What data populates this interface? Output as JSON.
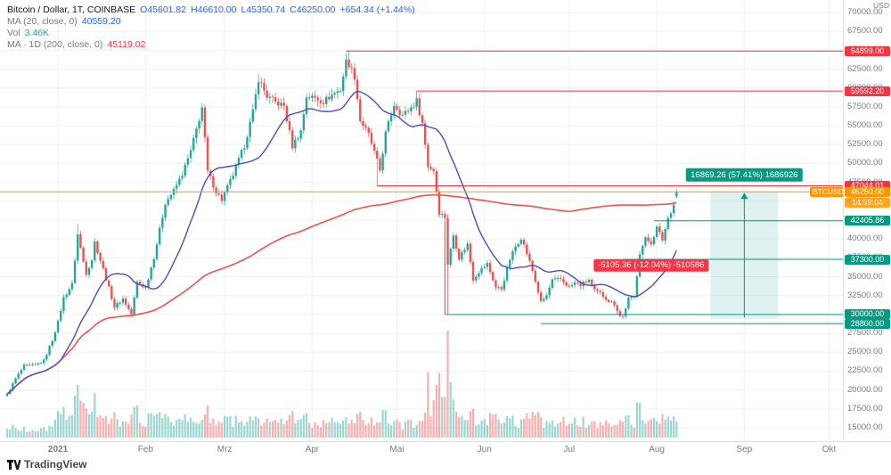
{
  "legend": {
    "title": "Bitcoin / Dollar, 1T, COINBASE",
    "open": "O45601.82",
    "high": "H46610.00",
    "low": "L45350.74",
    "close": "C46250.00",
    "change": "+654.34 (+1.44%)",
    "ma20_label": "MA (20, close, 0)",
    "ma20_value": "40559.20",
    "vol_label": "Vol",
    "vol_value": "3.46K",
    "ma200_label": "MA · 1D (200, close, 0)",
    "ma200_value": "45119.02"
  },
  "branding": {
    "logo_text": "TradingView"
  },
  "colors": {
    "up": "#26a69a",
    "down": "#ef5350",
    "vol_up": "rgba(38,166,154,0.45)",
    "vol_down": "rgba(239,83,80,0.45)",
    "ma20": "#4a4dc7",
    "ma200": "#ef5350",
    "current_price": "#ff9800",
    "grid": "#eef1f6",
    "axis_text": "#787b86",
    "badge_red": "#f23645",
    "badge_green": "#089981",
    "badge_orange": "#ff9800"
  },
  "price_axis": {
    "unit": "USD",
    "tick_top": 70000,
    "tick_bottom": 15000,
    "tick_step": 2500,
    "labels": [
      {
        "text": "64899.00",
        "price": 64899.0,
        "bg": "#f23645"
      },
      {
        "text": "59592.20",
        "price": 59592.2,
        "bg": "#f23645"
      },
      {
        "text": "47044.01",
        "price": 47044.01,
        "bg": "#f23645"
      },
      {
        "text": "46250.00",
        "price": 46250.0,
        "bg": "#ff9800",
        "tag": "BTCUSD",
        "countdown": "14:59:04"
      },
      {
        "text": "42405.86",
        "price": 42405.86,
        "bg": "#089981"
      },
      {
        "text": "37300.00",
        "price": 37300.0,
        "bg": "#089981"
      },
      {
        "text": "30000.00",
        "price": 30000.0,
        "bg": "#089981"
      },
      {
        "text": "28800.00",
        "price": 28800.0,
        "bg": "#089981"
      }
    ]
  },
  "time_axis": {
    "labels": [
      {
        "text": "2021",
        "day": 18,
        "strong": true
      },
      {
        "text": "Feb",
        "day": 49
      },
      {
        "text": "Mrz",
        "day": 77
      },
      {
        "text": "Apr",
        "day": 108
      },
      {
        "text": "Mai",
        "day": 138
      },
      {
        "text": "Jun",
        "day": 169
      },
      {
        "text": "Jul",
        "day": 199
      },
      {
        "text": "Aug",
        "day": 230
      },
      {
        "text": "Sep",
        "day": 261
      },
      {
        "text": "Okt",
        "day": 291
      }
    ]
  },
  "drawings": {
    "horizontal_lines": [
      {
        "price": 64899.0,
        "from_day": 120,
        "color": "#f23645"
      },
      {
        "price": 59592.2,
        "from_day": 145,
        "color": "#f23645"
      },
      {
        "price": 47044.01,
        "from_day": 131,
        "color": "#f23645"
      },
      {
        "price": 42405.86,
        "from_day": 229,
        "color": "#089981"
      },
      {
        "price": 37300.0,
        "from_day": 218,
        "color": "#089981"
      },
      {
        "price": 30000.0,
        "from_day": 155,
        "color": "#089981"
      },
      {
        "price": 28800.0,
        "from_day": 189,
        "color": "#089981"
      }
    ],
    "vertical_line": {
      "day": 155,
      "price_from": 42300,
      "price_to": 30000,
      "color": "#f23645"
    },
    "measure_down": {
      "label": "-5105.36 (-12.04%) -510586",
      "center_day": 228,
      "price": 36500,
      "color": "#f23645"
    },
    "measure_up": {
      "label": "16869.26 (57.41%) 1686926",
      "from_day": 249,
      "to_day": 273,
      "price_from": 29380.74,
      "price_to": 46250.0,
      "color": "#089981",
      "fill": "rgba(8,153,129,0.13)"
    }
  },
  "chart_data": {
    "type": "candlestick",
    "title": "Bitcoin / Dollar, 1T, COINBASE",
    "ylabel": "USD",
    "ylim": [
      15000,
      70000
    ],
    "grid": true,
    "days_total": 238,
    "last_candle": {
      "open": 45601.82,
      "high": 46610.0,
      "low": 45350.74,
      "close": 46250.0,
      "change": 654.34,
      "change_pct": 1.44
    },
    "ma20_last": 40559.2,
    "ma200_last": 45119.02,
    "volume_last": "3.46K",
    "close_anchors_day_price": [
      [
        0,
        19400
      ],
      [
        3,
        21500
      ],
      [
        6,
        23200
      ],
      [
        10,
        23300
      ],
      [
        13,
        23900
      ],
      [
        16,
        26600
      ],
      [
        18,
        29000
      ],
      [
        20,
        32200
      ],
      [
        23,
        34000
      ],
      [
        25,
        40600
      ],
      [
        27,
        37000
      ],
      [
        28,
        35500
      ],
      [
        30,
        37300
      ],
      [
        31,
        39600
      ],
      [
        34,
        36000
      ],
      [
        38,
        31000
      ],
      [
        41,
        32100
      ],
      [
        44,
        30000
      ],
      [
        46,
        34300
      ],
      [
        49,
        33500
      ],
      [
        52,
        37600
      ],
      [
        56,
        44800
      ],
      [
        59,
        46400
      ],
      [
        62,
        48600
      ],
      [
        65,
        51600
      ],
      [
        69,
        57400
      ],
      [
        71,
        48900
      ],
      [
        74,
        46300
      ],
      [
        76,
        45200
      ],
      [
        80,
        48500
      ],
      [
        84,
        52400
      ],
      [
        87,
        56800
      ],
      [
        89,
        61200
      ],
      [
        92,
        58900
      ],
      [
        95,
        58100
      ],
      [
        98,
        57600
      ],
      [
        101,
        52300
      ],
      [
        104,
        54300
      ],
      [
        106,
        58900
      ],
      [
        109,
        58700
      ],
      [
        112,
        58200
      ],
      [
        115,
        59100
      ],
      [
        118,
        59800
      ],
      [
        120,
        63500
      ],
      [
        121,
        63200
      ],
      [
        123,
        61500
      ],
      [
        125,
        55700
      ],
      [
        128,
        53800
      ],
      [
        132,
        49100
      ],
      [
        134,
        54000
      ],
      [
        137,
        57800
      ],
      [
        140,
        56400
      ],
      [
        143,
        57400
      ],
      [
        145,
        58300
      ],
      [
        147,
        55300
      ],
      [
        149,
        49700
      ],
      [
        151,
        49100
      ],
      [
        153,
        43500
      ],
      [
        155,
        42900
      ],
      [
        156,
        36700
      ],
      [
        158,
        40500
      ],
      [
        160,
        37500
      ],
      [
        163,
        39300
      ],
      [
        165,
        34700
      ],
      [
        167,
        35700
      ],
      [
        170,
        36700
      ],
      [
        173,
        33600
      ],
      [
        175,
        33400
      ],
      [
        178,
        37300
      ],
      [
        180,
        39000
      ],
      [
        182,
        40200
      ],
      [
        184,
        38100
      ],
      [
        186,
        35800
      ],
      [
        189,
        31600
      ],
      [
        191,
        32500
      ],
      [
        193,
        34500
      ],
      [
        196,
        34700
      ],
      [
        199,
        33600
      ],
      [
        201,
        34200
      ],
      [
        203,
        33900
      ],
      [
        206,
        34600
      ],
      [
        208,
        33100
      ],
      [
        210,
        32800
      ],
      [
        213,
        31800
      ],
      [
        215,
        31400
      ],
      [
        217,
        29800
      ],
      [
        218,
        29700
      ],
      [
        220,
        32100
      ],
      [
        222,
        32300
      ],
      [
        224,
        38200
      ],
      [
        226,
        40000
      ],
      [
        228,
        39500
      ],
      [
        230,
        41500
      ],
      [
        232,
        39900
      ],
      [
        234,
        42800
      ],
      [
        236,
        44600
      ],
      [
        237,
        46250
      ]
    ],
    "special_candles": {
      "25": {
        "high": 41950.0
      },
      "89": {
        "high": 61844.0
      },
      "121": {
        "high": 64899.0
      },
      "131": {
        "low": 47044.01
      },
      "145": {
        "high": 59592.2
      },
      "156": {
        "low": 30000.0
      },
      "218": {
        "low": 29380.74
      }
    }
  }
}
